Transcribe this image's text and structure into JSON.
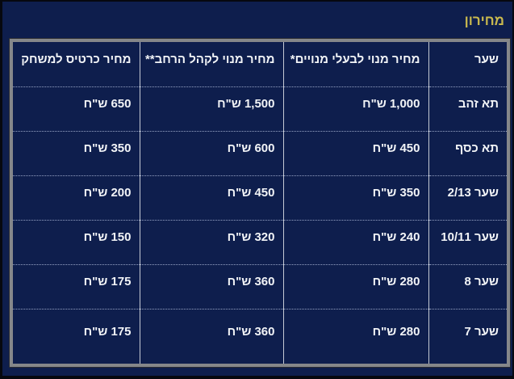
{
  "page": {
    "title": "מחירון",
    "colors": {
      "background": "#0E1E4D",
      "title": "#C9B94E",
      "frame": "#85878A",
      "frame-edge": "#2A2C32",
      "text": "#F2F4F7",
      "grid": "#C5CAD4",
      "row-divider": "#96A3C4",
      "edge": "#06080F"
    }
  },
  "table": {
    "columns": [
      {
        "key": "gate",
        "label": "שער"
      },
      {
        "key": "member_subscription_price",
        "label": "מחיר מנוי לבעלי מנויים*"
      },
      {
        "key": "public_subscription_price",
        "label": "מחיר מנוי לקהל הרחב**"
      },
      {
        "key": "game_ticket_price",
        "label": "מחיר כרטיס למשחק"
      }
    ],
    "rows": [
      [
        "תא זהב",
        "1,000 ש\"ח",
        "1,500 ש\"ח",
        "650 ש\"ח"
      ],
      [
        "תא כסף",
        "450 ש\"ח",
        "600 ש\"ח",
        "350 ש\"ח"
      ],
      [
        "שער 2/13",
        "350 ש\"ח",
        "450 ש\"ח",
        "200 ש\"ח"
      ],
      [
        "שער 10/11",
        "240 ש\"ח",
        "320 ש\"ח",
        "150 ש\"ח"
      ],
      [
        "שער 8",
        "280 ש\"ח",
        "360 ש\"ח",
        "175 ש\"ח"
      ],
      [
        "שער 7",
        "280 ש\"ח",
        "360 ש\"ח",
        "175 ש\"ח"
      ]
    ]
  }
}
